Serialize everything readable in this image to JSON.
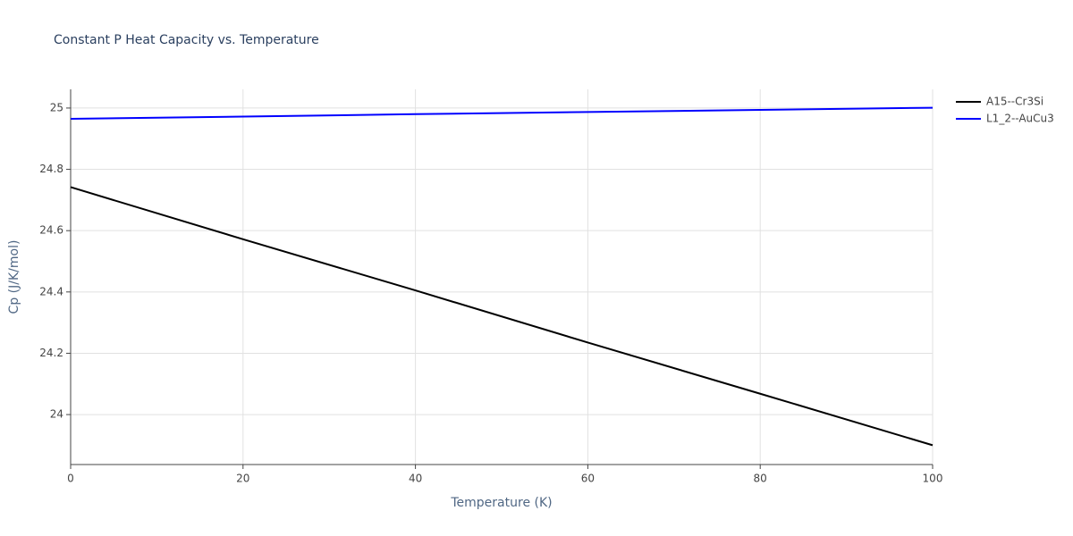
{
  "chart_data": {
    "type": "line",
    "title": "Constant P Heat Capacity vs. Temperature",
    "x_label": "Temperature (K)",
    "y_label": "Cp (J/K/mol)",
    "x": [
      0,
      20,
      40,
      60,
      80,
      100
    ],
    "series": [
      {
        "name": "A15--Cr3Si",
        "color": "#000000",
        "values": [
          24.742,
          24.572,
          24.405,
          24.235,
          24.068,
          23.9
        ]
      },
      {
        "name": "L1_2--AuCu3",
        "color": "#0000ff",
        "values": [
          24.965,
          24.972,
          24.98,
          24.987,
          24.994,
          25.001
        ]
      }
    ],
    "xlim": [
      0,
      100
    ],
    "xticks": [
      0,
      20,
      40,
      60,
      80,
      100
    ],
    "ylim": [
      23.837,
      25.061
    ],
    "yticks": [
      24,
      24.2,
      24.4,
      24.6,
      24.8,
      25
    ],
    "grid": true,
    "legend": "right"
  }
}
